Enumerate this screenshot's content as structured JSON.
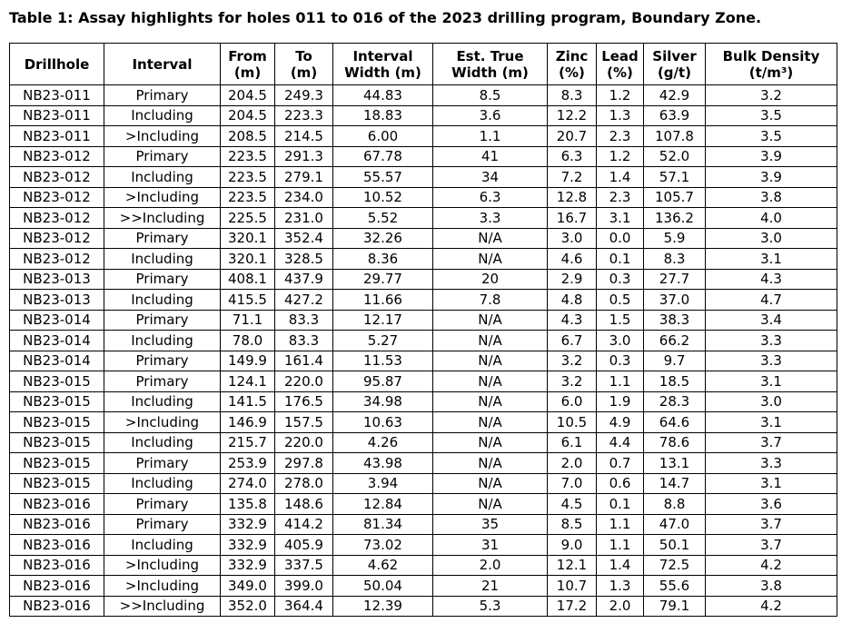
{
  "title": "Table 1: Assay highlights for holes 011 to 016 of the 2023 drilling program, Boundary Zone.",
  "table": {
    "headers": [
      [
        "Drillhole"
      ],
      [
        "Interval"
      ],
      [
        "From",
        "(m)"
      ],
      [
        "To",
        "(m)"
      ],
      [
        "Interval",
        "Width (m)"
      ],
      [
        "Est. True",
        "Width (m)"
      ],
      [
        "Zinc",
        "(%)"
      ],
      [
        "Lead",
        "(%)"
      ],
      [
        "Silver",
        "(g/t)"
      ],
      [
        "Bulk Density",
        "(t/m³)"
      ]
    ],
    "rows": [
      [
        "NB23-011",
        "Primary",
        "204.5",
        "249.3",
        "44.83",
        "8.5",
        "8.3",
        "1.2",
        "42.9",
        "3.2"
      ],
      [
        "NB23-011",
        "Including",
        "204.5",
        "223.3",
        "18.83",
        "3.6",
        "12.2",
        "1.3",
        "63.9",
        "3.5"
      ],
      [
        "NB23-011",
        ">Including",
        "208.5",
        "214.5",
        "6.00",
        "1.1",
        "20.7",
        "2.3",
        "107.8",
        "3.5"
      ],
      [
        "NB23-012",
        "Primary",
        "223.5",
        "291.3",
        "67.78",
        "41",
        "6.3",
        "1.2",
        "52.0",
        "3.9"
      ],
      [
        "NB23-012",
        "Including",
        "223.5",
        "279.1",
        "55.57",
        "34",
        "7.2",
        "1.4",
        "57.1",
        "3.9"
      ],
      [
        "NB23-012",
        ">Including",
        "223.5",
        "234.0",
        "10.52",
        "6.3",
        "12.8",
        "2.3",
        "105.7",
        "3.8"
      ],
      [
        "NB23-012",
        ">>Including",
        "225.5",
        "231.0",
        "5.52",
        "3.3",
        "16.7",
        "3.1",
        "136.2",
        "4.0"
      ],
      [
        "NB23-012",
        "Primary",
        "320.1",
        "352.4",
        "32.26",
        "N/A",
        "3.0",
        "0.0",
        "5.9",
        "3.0"
      ],
      [
        "NB23-012",
        "Including",
        "320.1",
        "328.5",
        "8.36",
        "N/A",
        "4.6",
        "0.1",
        "8.3",
        "3.1"
      ],
      [
        "NB23-013",
        "Primary",
        "408.1",
        "437.9",
        "29.77",
        "20",
        "2.9",
        "0.3",
        "27.7",
        "4.3"
      ],
      [
        "NB23-013",
        "Including",
        "415.5",
        "427.2",
        "11.66",
        "7.8",
        "4.8",
        "0.5",
        "37.0",
        "4.7"
      ],
      [
        "NB23-014",
        "Primary",
        "71.1",
        "83.3",
        "12.17",
        "N/A",
        "4.3",
        "1.5",
        "38.3",
        "3.4"
      ],
      [
        "NB23-014",
        "Including",
        "78.0",
        "83.3",
        "5.27",
        "N/A",
        "6.7",
        "3.0",
        "66.2",
        "3.3"
      ],
      [
        "NB23-014",
        "Primary",
        "149.9",
        "161.4",
        "11.53",
        "N/A",
        "3.2",
        "0.3",
        "9.7",
        "3.3"
      ],
      [
        "NB23-015",
        "Primary",
        "124.1",
        "220.0",
        "95.87",
        "N/A",
        "3.2",
        "1.1",
        "18.5",
        "3.1"
      ],
      [
        "NB23-015",
        "Including",
        "141.5",
        "176.5",
        "34.98",
        "N/A",
        "6.0",
        "1.9",
        "28.3",
        "3.0"
      ],
      [
        "NB23-015",
        ">Including",
        "146.9",
        "157.5",
        "10.63",
        "N/A",
        "10.5",
        "4.9",
        "64.6",
        "3.1"
      ],
      [
        "NB23-015",
        "Including",
        "215.7",
        "220.0",
        "4.26",
        "N/A",
        "6.1",
        "4.4",
        "78.6",
        "3.7"
      ],
      [
        "NB23-015",
        "Primary",
        "253.9",
        "297.8",
        "43.98",
        "N/A",
        "2.0",
        "0.7",
        "13.1",
        "3.3"
      ],
      [
        "NB23-015",
        "Including",
        "274.0",
        "278.0",
        "3.94",
        "N/A",
        "7.0",
        "0.6",
        "14.7",
        "3.1"
      ],
      [
        "NB23-016",
        "Primary",
        "135.8",
        "148.6",
        "12.84",
        "N/A",
        "4.5",
        "0.1",
        "8.8",
        "3.6"
      ],
      [
        "NB23-016",
        "Primary",
        "332.9",
        "414.2",
        "81.34",
        "35",
        "8.5",
        "1.1",
        "47.0",
        "3.7"
      ],
      [
        "NB23-016",
        "Including",
        "332.9",
        "405.9",
        "73.02",
        "31",
        "9.0",
        "1.1",
        "50.1",
        "3.7"
      ],
      [
        "NB23-016",
        ">Including",
        "332.9",
        "337.5",
        "4.62",
        "2.0",
        "12.1",
        "1.4",
        "72.5",
        "4.2"
      ],
      [
        "NB23-016",
        ">Including",
        "349.0",
        "399.0",
        "50.04",
        "21",
        "10.7",
        "1.3",
        "55.6",
        "3.8"
      ],
      [
        "NB23-016",
        ">>Including",
        "352.0",
        "364.4",
        "12.39",
        "5.3",
        "17.2",
        "2.0",
        "79.1",
        "4.2"
      ]
    ]
  }
}
